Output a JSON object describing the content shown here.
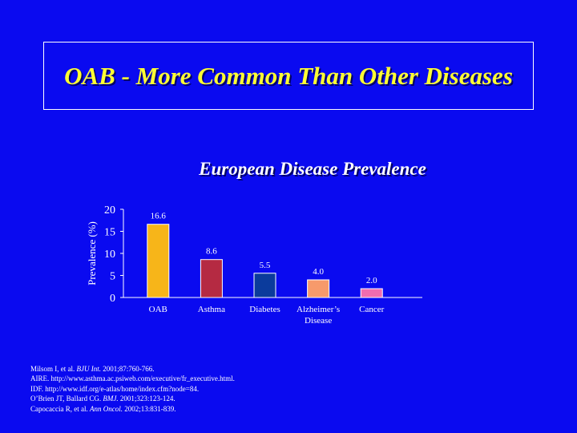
{
  "slide": {
    "title": "OAB - More Common Than Other Diseases"
  },
  "chart_data": {
    "type": "bar",
    "title": "European Disease Prevalence",
    "ylabel": "Prevalence (%)",
    "xlabel": "",
    "ylim": [
      0,
      20
    ],
    "yticks": [
      0,
      5,
      10,
      15,
      20
    ],
    "categories": [
      "OAB",
      "Asthma",
      "Diabetes",
      "Alzheimer’s Disease",
      "Cancer"
    ],
    "category_lines": [
      [
        "OAB"
      ],
      [
        "Asthma"
      ],
      [
        "Diabetes"
      ],
      [
        "Alzheimer’s",
        "Disease"
      ],
      [
        "Cancer"
      ]
    ],
    "values": [
      16.6,
      8.6,
      5.5,
      4.0,
      2.0
    ],
    "value_labels": [
      "16.6",
      "8.6",
      "5.5",
      "4.0",
      "2.0"
    ],
    "colors": [
      "#f7b519",
      "#b52a42",
      "#0b3b9c",
      "#f79a6b",
      "#f06cb0"
    ],
    "grid": false,
    "legend": "none"
  },
  "references": [
    {
      "pre": "Milsom I, et al. ",
      "em": "BJU Int.",
      "post": " 2001;87:760-766."
    },
    {
      "pre": "AIRE. http://www.asthma.ac.psiweb.com/executive/fr_executive.html.",
      "em": "",
      "post": ""
    },
    {
      "pre": "IDF. http://www.idf.org/e-atlas/home/index.cfm?node=84.",
      "em": "",
      "post": ""
    },
    {
      "pre": "O’Brien JT, Ballard CG. ",
      "em": "BMJ.",
      "post": " 2001;323:123-124."
    },
    {
      "pre": "Capocaccia R, et al. ",
      "em": "Ann Oncol.",
      "post": " 2002;13:831-839."
    }
  ]
}
